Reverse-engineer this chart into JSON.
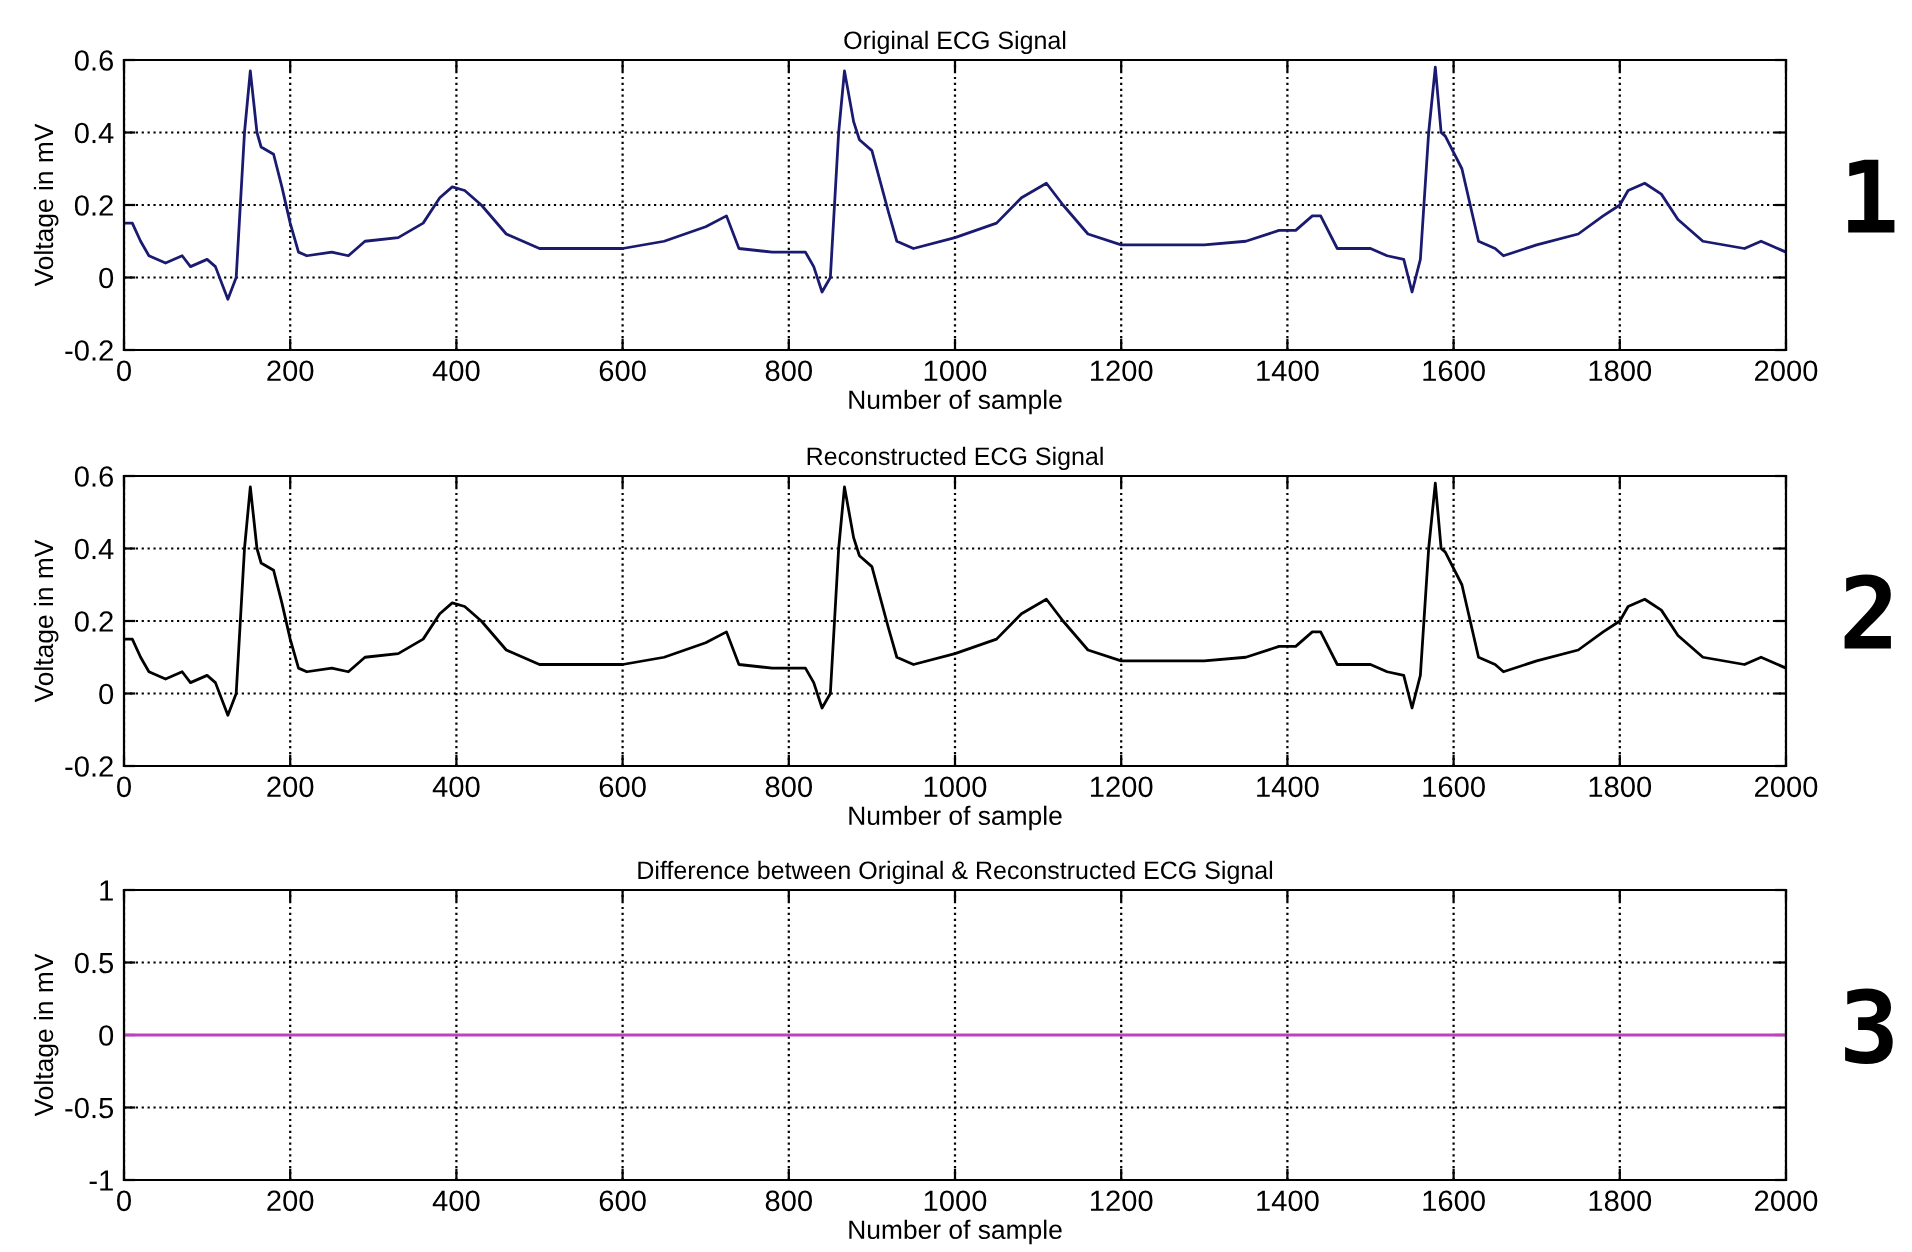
{
  "chart_data": [
    {
      "type": "line",
      "title": "Original ECG Signal",
      "xlabel": "Number of sample",
      "ylabel": "Voltage in mV",
      "annotations": [
        "1"
      ],
      "grid": true,
      "xlim": [
        0,
        2000
      ],
      "xticks": [
        0,
        200,
        400,
        600,
        800,
        1000,
        1200,
        1400,
        1600,
        1800,
        2000
      ],
      "ylim": [
        -0.2,
        0.6
      ],
      "yticks": [
        -0.2,
        0,
        0.2,
        0.4,
        0.6
      ],
      "x": [
        0,
        10,
        20,
        30,
        50,
        70,
        80,
        100,
        110,
        125,
        135,
        145,
        152,
        160,
        165,
        180,
        190,
        200,
        210,
        220,
        250,
        270,
        290,
        330,
        360,
        380,
        395,
        410,
        430,
        460,
        500,
        550,
        600,
        650,
        700,
        725,
        740,
        780,
        820,
        830,
        840,
        850,
        860,
        867,
        878,
        885,
        900,
        920,
        930,
        950,
        1000,
        1050,
        1080,
        1110,
        1130,
        1160,
        1200,
        1250,
        1300,
        1350,
        1390,
        1410,
        1430,
        1440,
        1460,
        1500,
        1520,
        1540,
        1550,
        1560,
        1570,
        1578,
        1585,
        1590,
        1610,
        1630,
        1650,
        1660,
        1700,
        1750,
        1780,
        1800,
        1810,
        1830,
        1850,
        1870,
        1900,
        1950,
        1970,
        2000
      ],
      "series": [
        {
          "color": "#1a1a70",
          "values": [
            0.15,
            0.15,
            0.1,
            0.06,
            0.04,
            0.06,
            0.03,
            0.05,
            0.03,
            -0.06,
            0.0,
            0.4,
            0.57,
            0.4,
            0.36,
            0.34,
            0.25,
            0.15,
            0.07,
            0.06,
            0.07,
            0.06,
            0.1,
            0.11,
            0.15,
            0.22,
            0.25,
            0.24,
            0.2,
            0.12,
            0.08,
            0.08,
            0.08,
            0.1,
            0.14,
            0.17,
            0.08,
            0.07,
            0.07,
            0.03,
            -0.04,
            0.0,
            0.4,
            0.57,
            0.43,
            0.38,
            0.35,
            0.18,
            0.1,
            0.08,
            0.11,
            0.15,
            0.22,
            0.26,
            0.2,
            0.12,
            0.09,
            0.09,
            0.09,
            0.1,
            0.13,
            0.13,
            0.17,
            0.17,
            0.08,
            0.08,
            0.06,
            0.05,
            -0.04,
            0.05,
            0.4,
            0.58,
            0.4,
            0.39,
            0.3,
            0.1,
            0.08,
            0.06,
            0.09,
            0.12,
            0.17,
            0.2,
            0.24,
            0.26,
            0.23,
            0.16,
            0.1,
            0.08,
            0.1,
            0.07
          ]
        }
      ]
    },
    {
      "type": "line",
      "title": "Reconstructed ECG Signal",
      "xlabel": "Number of sample",
      "ylabel": "Voltage in mV",
      "annotations": [
        "2"
      ],
      "grid": true,
      "xlim": [
        0,
        2000
      ],
      "xticks": [
        0,
        200,
        400,
        600,
        800,
        1000,
        1200,
        1400,
        1600,
        1800,
        2000
      ],
      "ylim": [
        -0.2,
        0.6
      ],
      "yticks": [
        -0.2,
        0,
        0.2,
        0.4,
        0.6
      ],
      "x": [
        0,
        10,
        20,
        30,
        50,
        70,
        80,
        100,
        110,
        125,
        135,
        145,
        152,
        160,
        165,
        180,
        190,
        200,
        210,
        220,
        250,
        270,
        290,
        330,
        360,
        380,
        395,
        410,
        430,
        460,
        500,
        550,
        600,
        650,
        700,
        725,
        740,
        780,
        820,
        830,
        840,
        850,
        860,
        867,
        878,
        885,
        900,
        920,
        930,
        950,
        1000,
        1050,
        1080,
        1110,
        1130,
        1160,
        1200,
        1250,
        1300,
        1350,
        1390,
        1410,
        1430,
        1440,
        1460,
        1500,
        1520,
        1540,
        1550,
        1560,
        1570,
        1578,
        1585,
        1590,
        1610,
        1630,
        1650,
        1660,
        1700,
        1750,
        1780,
        1800,
        1810,
        1830,
        1850,
        1870,
        1900,
        1950,
        1970,
        2000
      ],
      "series": [
        {
          "color": "#000000",
          "values": [
            0.15,
            0.15,
            0.1,
            0.06,
            0.04,
            0.06,
            0.03,
            0.05,
            0.03,
            -0.06,
            0.0,
            0.4,
            0.57,
            0.4,
            0.36,
            0.34,
            0.25,
            0.15,
            0.07,
            0.06,
            0.07,
            0.06,
            0.1,
            0.11,
            0.15,
            0.22,
            0.25,
            0.24,
            0.2,
            0.12,
            0.08,
            0.08,
            0.08,
            0.1,
            0.14,
            0.17,
            0.08,
            0.07,
            0.07,
            0.03,
            -0.04,
            0.0,
            0.4,
            0.57,
            0.43,
            0.38,
            0.35,
            0.18,
            0.1,
            0.08,
            0.11,
            0.15,
            0.22,
            0.26,
            0.2,
            0.12,
            0.09,
            0.09,
            0.09,
            0.1,
            0.13,
            0.13,
            0.17,
            0.17,
            0.08,
            0.08,
            0.06,
            0.05,
            -0.04,
            0.05,
            0.4,
            0.58,
            0.4,
            0.39,
            0.3,
            0.1,
            0.08,
            0.06,
            0.09,
            0.12,
            0.17,
            0.2,
            0.24,
            0.26,
            0.23,
            0.16,
            0.1,
            0.08,
            0.1,
            0.07
          ]
        }
      ]
    },
    {
      "type": "line",
      "title": "Difference between Original & Reconstructed ECG Signal",
      "xlabel": "Number of sample",
      "ylabel": "Voltage in mV",
      "annotations": [
        "3"
      ],
      "grid": true,
      "xlim": [
        0,
        2000
      ],
      "xticks": [
        0,
        200,
        400,
        600,
        800,
        1000,
        1200,
        1400,
        1600,
        1800,
        2000
      ],
      "ylim": [
        -1,
        1
      ],
      "yticks": [
        -1,
        -0.5,
        0,
        0.5,
        1
      ],
      "x": [
        0,
        2000
      ],
      "series": [
        {
          "color": "#c040c0",
          "values": [
            0,
            0
          ]
        }
      ]
    }
  ]
}
